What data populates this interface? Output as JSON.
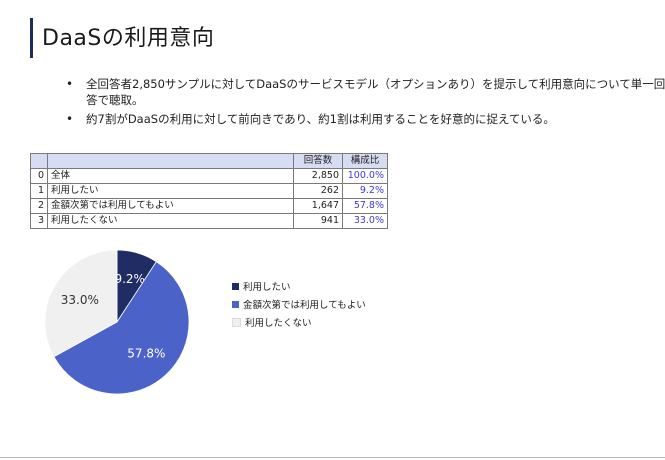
{
  "slide": {
    "title": "DaaSの利用意向",
    "bullets": [
      "全回答者2,850サンプルに対してDaaSのサービスモデル（オプションあり）を提示して利用意向について単一回答で聴取。",
      "約7割がDaaSの利用に対して前向きであり、約1割は利用することを好意的に捉えている。"
    ]
  },
  "table": {
    "headers": [
      "",
      "",
      "回答数",
      "構成比"
    ],
    "rows": [
      {
        "idx": "0",
        "label": "全体",
        "count": "2,850",
        "pct": "100.0%"
      },
      {
        "idx": "1",
        "label": "利用したい",
        "count": "262",
        "pct": "9.2%"
      },
      {
        "idx": "2",
        "label": "金額次第では利用してもよい",
        "count": "1,647",
        "pct": "57.8%"
      },
      {
        "idx": "3",
        "label": "利用したくない",
        "count": "941",
        "pct": "33.0%"
      }
    ]
  },
  "chart_data": {
    "type": "pie",
    "categories": [
      "利用したい",
      "金額次第では利用してもよい",
      "利用したくない"
    ],
    "values": [
      9.2,
      57.8,
      33.0
    ],
    "labels": [
      "9.2%",
      "57.8%",
      "33.0%"
    ],
    "colors": [
      "#1f2d64",
      "#4b63c9",
      "#f0f0f0"
    ],
    "label_colors": [
      "#ffffff",
      "#ffffff",
      "#333333"
    ],
    "legend_position": "right"
  }
}
